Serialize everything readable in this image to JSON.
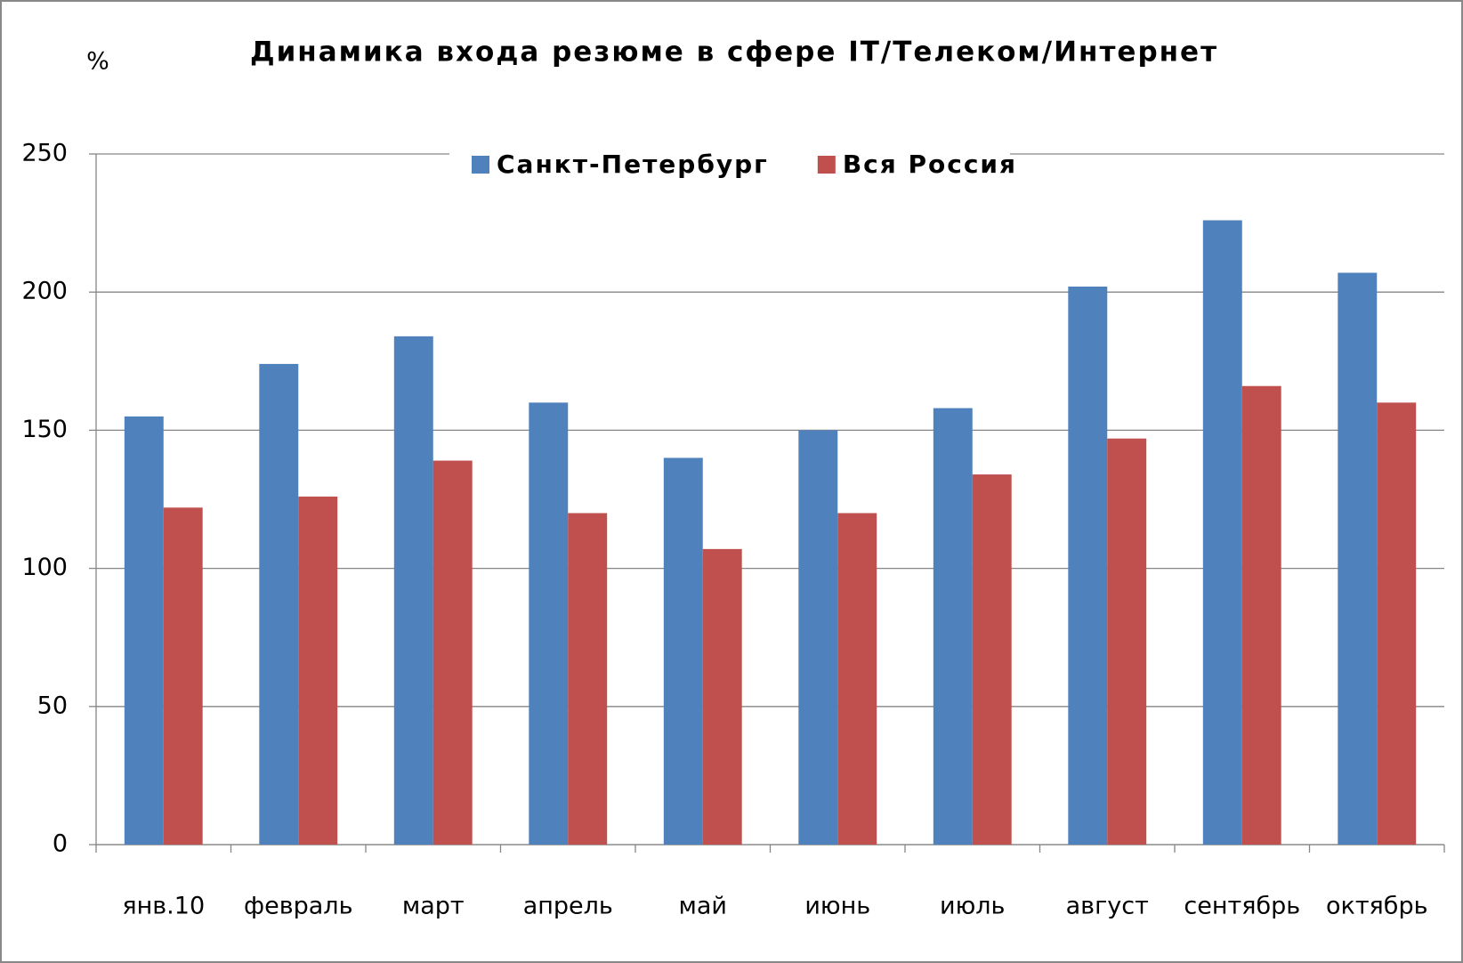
{
  "chart_data": {
    "type": "bar",
    "title": "Динамика входа резюме в сфере IT/Телеком/Интернет",
    "y_label": "%",
    "categories": [
      "янв.10",
      "февраль",
      "март",
      "апрель",
      "май",
      "июнь",
      "июль",
      "август",
      "сентябрь",
      "октябрь"
    ],
    "series": [
      {
        "name": "Санкт-Петербург",
        "color": "#4f81bd",
        "values": [
          155,
          174,
          184,
          160,
          140,
          150,
          158,
          202,
          226,
          207
        ]
      },
      {
        "name": "Вся Россия",
        "color": "#c0504d",
        "values": [
          122,
          126,
          139,
          120,
          107,
          120,
          134,
          147,
          166,
          160
        ]
      }
    ],
    "ylim": [
      0,
      250
    ],
    "yticks": [
      0,
      50,
      100,
      150,
      200,
      250
    ],
    "grid": true,
    "legend": "top"
  }
}
